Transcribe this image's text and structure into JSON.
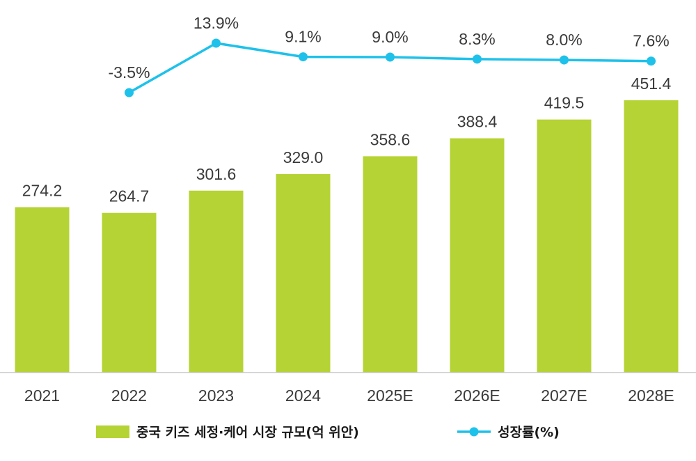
{
  "chart_data": {
    "type": "bar",
    "categories": [
      "2021",
      "2022",
      "2023",
      "2024",
      "2025E",
      "2026E",
      "2027E",
      "2028E"
    ],
    "series": [
      {
        "name": "중국 키즈 세정·케어 시장 규모(억 위안)",
        "type": "bar",
        "values": [
          274.2,
          264.7,
          301.6,
          329.0,
          358.6,
          388.4,
          419.5,
          451.4
        ],
        "labels": [
          "274.2",
          "264.7",
          "301.6",
          "329.0",
          "358.6",
          "388.4",
          "419.5",
          "451.4"
        ],
        "color": "#b5d334"
      },
      {
        "name": "성장률(%)",
        "type": "line",
        "values": [
          null,
          -3.5,
          13.9,
          9.1,
          9.0,
          8.3,
          8.0,
          7.6
        ],
        "labels": [
          "",
          "-3.5%",
          "13.9%",
          "9.1%",
          "9.0%",
          "8.3%",
          "8.0%",
          "7.6%"
        ],
        "color": "#1ec1ea"
      }
    ],
    "ylim": [
      0,
      470
    ],
    "growth_ylim": [
      -50,
      18
    ],
    "grid": false,
    "legend": "bottom"
  }
}
